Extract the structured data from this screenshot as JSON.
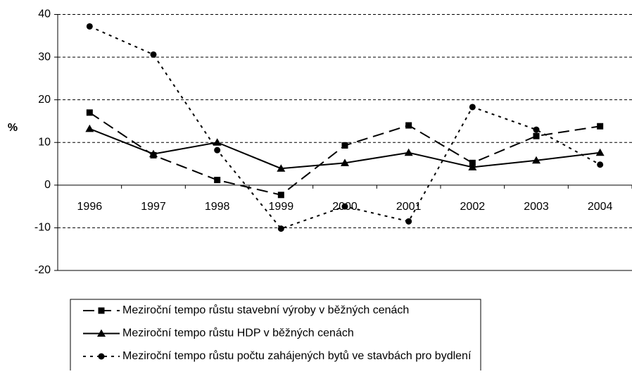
{
  "chart_data": {
    "type": "line",
    "y_label": "%",
    "categories": [
      "1996",
      "1997",
      "1998",
      "1999",
      "2000",
      "2001",
      "2002",
      "2003",
      "2004"
    ],
    "series": [
      {
        "name": "Meziroční tempo růstu stavební výroby v běžných cenách",
        "color": "#000000",
        "marker": "square",
        "dash": "16,8",
        "values": [
          17,
          7,
          1.2,
          -2.3,
          9.3,
          14,
          5.2,
          11.5,
          13.8
        ]
      },
      {
        "name": "Meziroční tempo růstu HDP v běžných cenách",
        "color": "#000000",
        "marker": "triangle",
        "dash": "none",
        "values": [
          13.2,
          7.3,
          10,
          3.9,
          5.2,
          7.6,
          4.2,
          5.8,
          7.6
        ]
      },
      {
        "name": "Meziroční tempo růstu počtu zahájených bytů ve stavbách pro bydlení",
        "color": "#000000",
        "marker": "circle",
        "dash": "4,6",
        "values": [
          37.2,
          30.6,
          8.2,
          -10.2,
          -5,
          -8.5,
          18.3,
          13,
          4.8
        ]
      }
    ],
    "ylim": [
      -20,
      40
    ],
    "yticks": [
      -20,
      -10,
      0,
      10,
      20,
      30,
      40
    ],
    "grid": true
  }
}
